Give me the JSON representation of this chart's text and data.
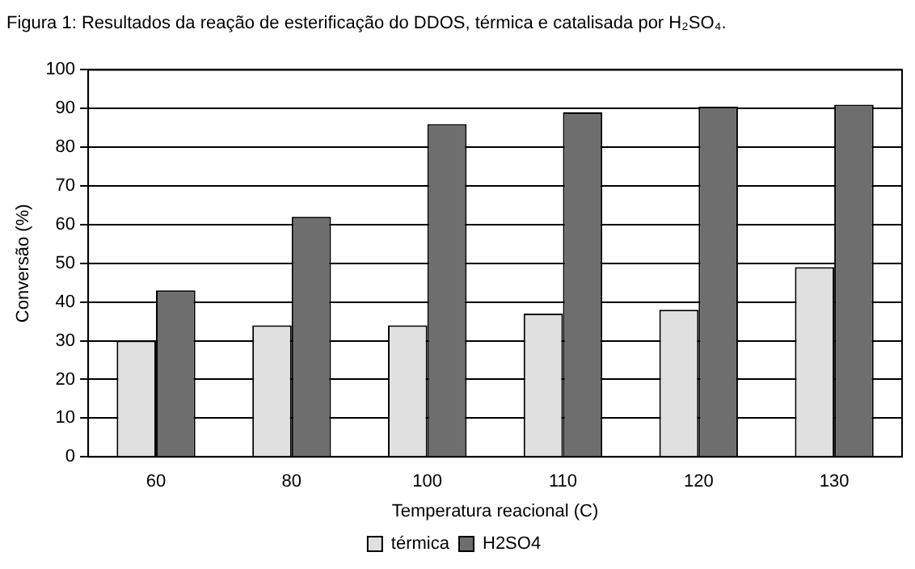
{
  "chart_data": {
    "type": "bar",
    "title": "Figura 1: Resultados da reação de esterificação do DDOS, térmica e catalisada por H₂SO₄.",
    "xlabel": "Temperatura reacional (C)",
    "ylabel": "Conversão (%)",
    "categories": [
      "60",
      "80",
      "100",
      "110",
      "120",
      "130"
    ],
    "series": [
      {
        "name": "térmica",
        "color": "#e0e0e0",
        "values": [
          30,
          34,
          34,
          37,
          38,
          49
        ]
      },
      {
        "name": "H2SO4",
        "color": "#6e6e6e",
        "values": [
          43,
          62,
          86,
          89,
          90.5,
          91
        ]
      }
    ],
    "ylim": [
      0,
      100
    ],
    "yticks": [
      0,
      10,
      20,
      30,
      40,
      50,
      60,
      70,
      80,
      90,
      100
    ],
    "grid": "y",
    "legend": "bottom"
  }
}
